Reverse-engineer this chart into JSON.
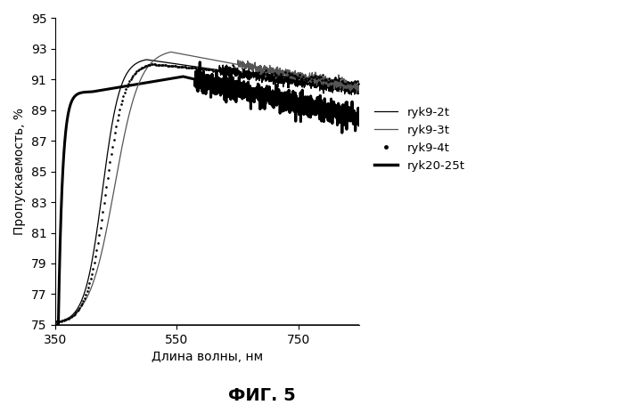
{
  "title": "ФИГ. 5",
  "xlabel": "Длина волны, нм",
  "ylabel": "Пропускаемость, %",
  "xlim": [
    350,
    850
  ],
  "ylim": [
    75,
    95
  ],
  "yticks": [
    75,
    77,
    79,
    81,
    83,
    85,
    87,
    89,
    91,
    93,
    95
  ],
  "xticks": [
    350,
    550,
    750
  ],
  "legend_labels": [
    "ryk9-2t",
    "ryk9-3t",
    "ryk9-4t",
    "ryk20-25t"
  ]
}
